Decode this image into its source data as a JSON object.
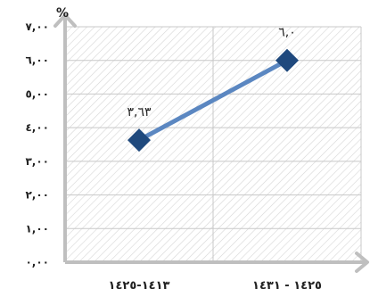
{
  "chart_data": {
    "type": "line",
    "title": "",
    "xlabel": "",
    "ylabel": "%",
    "ylim": [
      0,
      7
    ],
    "grid": true,
    "y_ticks": [
      {
        "value": 0,
        "label": "٠,٠٠"
      },
      {
        "value": 1,
        "label": "١,٠٠"
      },
      {
        "value": 2,
        "label": "٢,٠٠"
      },
      {
        "value": 3,
        "label": "٣,٠٠"
      },
      {
        "value": 4,
        "label": "٤,٠٠"
      },
      {
        "value": 5,
        "label": "٥,٠٠"
      },
      {
        "value": 6,
        "label": "٦,٠٠"
      },
      {
        "value": 7,
        "label": "٧,٠٠"
      }
    ],
    "categories": [
      "١٤١٣-١٤٢٥",
      "١٤٢٥ - ١٤٣١"
    ],
    "series": [
      {
        "values": [
          3.63,
          6.0
        ],
        "data_labels": [
          "٣,٦٣",
          "٦,٠"
        ],
        "color": "#5b87c1",
        "marker_color": "#1f497d"
      }
    ],
    "colors": {
      "axis": "#bfbfbf",
      "grid": "#c8c8c8",
      "hatch": "#d4d4d4"
    }
  }
}
